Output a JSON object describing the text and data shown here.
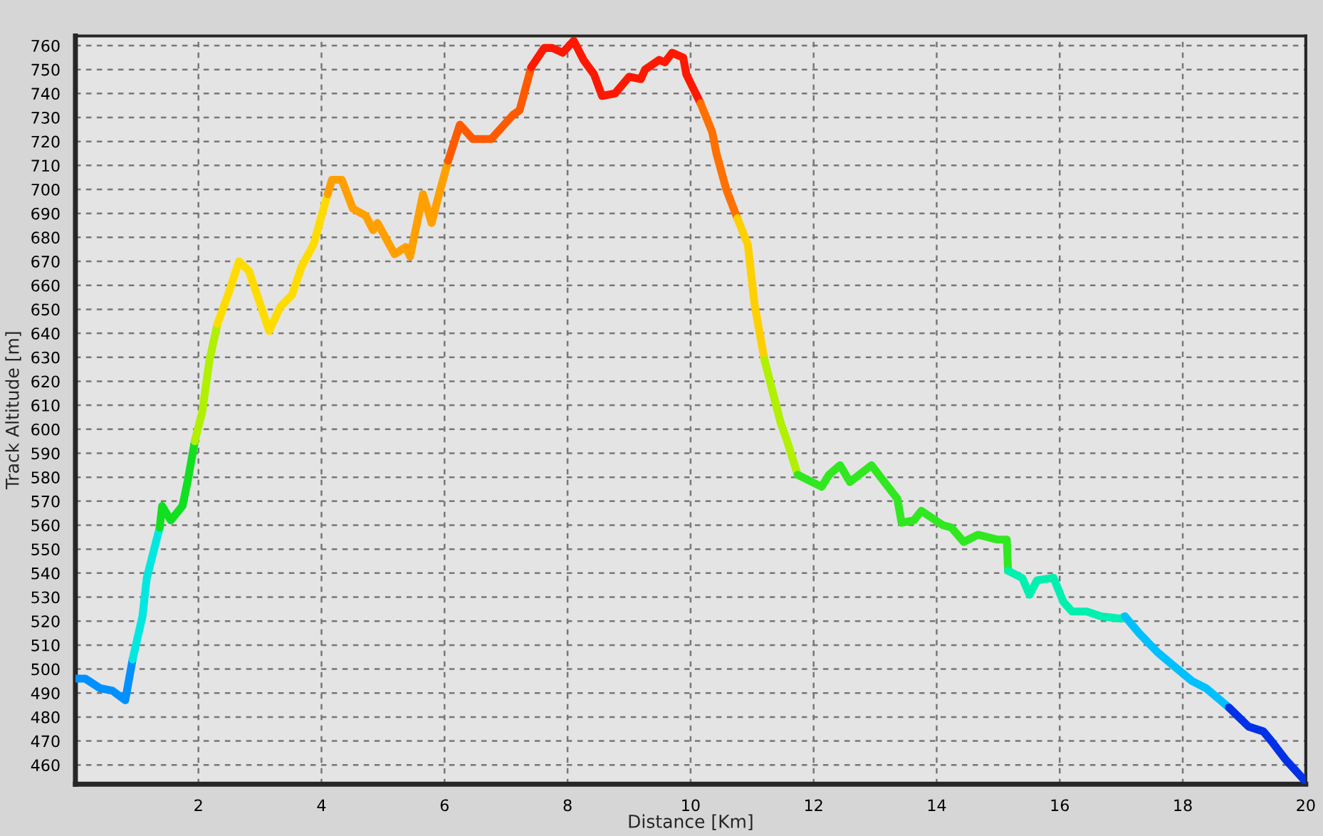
{
  "chart_data": {
    "type": "line",
    "xlabel": "Distance [Km]",
    "ylabel": "Track Altitude [m]",
    "xlim": [
      0,
      20
    ],
    "ylim": [
      452,
      764
    ],
    "xticks": [
      {
        "value": 0,
        "label": null
      },
      2,
      4,
      6,
      8,
      10,
      12,
      14,
      16,
      18,
      20
    ],
    "yticks": [
      460,
      470,
      480,
      490,
      500,
      510,
      520,
      530,
      540,
      550,
      560,
      570,
      580,
      590,
      600,
      610,
      620,
      630,
      640,
      650,
      660,
      670,
      680,
      690,
      700,
      710,
      720,
      730,
      740,
      750,
      760
    ],
    "grid": true,
    "line_style": "solid",
    "marker": "none",
    "series": [
      {
        "color": "#0090ff",
        "x": [
          0,
          0.16,
          0.4,
          0.6,
          0.81,
          0.93
        ],
        "values": [
          496,
          496,
          492,
          491,
          487,
          504
        ]
      },
      {
        "color": "#00e8e0",
        "x": [
          0.93,
          1.09,
          1.16,
          1.37
        ],
        "values": [
          504,
          522,
          538,
          559
        ]
      },
      {
        "color": "#10e020",
        "x": [
          1.37,
          1.41,
          1.55,
          1.74,
          1.83,
          1.94
        ],
        "values": [
          559,
          568,
          562,
          568,
          579,
          595
        ]
      },
      {
        "color": "#b0f000",
        "x": [
          1.94,
          2.06,
          2.18,
          2.31
        ],
        "values": [
          595,
          607,
          629,
          644
        ]
      },
      {
        "color": "#ffdc00",
        "x": [
          2.31,
          2.48,
          2.66,
          2.82,
          2.98,
          3.15,
          3.33,
          3.52,
          3.68,
          3.87,
          4.1
        ],
        "values": [
          644,
          656,
          670,
          666,
          654,
          641,
          651,
          656,
          668,
          677,
          698
        ]
      },
      {
        "color": "#ffa000",
        "x": [
          4.1,
          4.17,
          4.33,
          4.51,
          4.72,
          4.84,
          4.91,
          5.19,
          5.37,
          5.44,
          5.65,
          5.79,
          5.9,
          6.06
        ],
        "values": [
          698,
          704,
          704,
          692,
          689,
          683,
          686,
          673,
          676,
          672,
          698,
          686,
          697,
          712
        ]
      },
      {
        "color": "#ff5a00",
        "x": [
          6.06,
          6.25,
          6.46,
          6.76,
          7.11,
          7.22,
          7.41
        ],
        "values": [
          712,
          727,
          721,
          721,
          731,
          733,
          751
        ]
      },
      {
        "color": "#ff1800",
        "x": [
          7.41,
          7.62,
          7.75,
          7.92,
          8.1,
          8.26,
          8.43,
          8.56,
          8.77,
          9.0,
          9.19,
          9.26,
          9.49,
          9.58,
          9.7,
          9.88,
          9.93,
          10.16
        ],
        "values": [
          751,
          759,
          759,
          757,
          762,
          754,
          748,
          739,
          740,
          747,
          746,
          750,
          754,
          753,
          757,
          755,
          748,
          736
        ]
      },
      {
        "color": "#ff7000",
        "x": [
          10.16,
          10.35,
          10.42,
          10.58,
          10.76
        ],
        "values": [
          736,
          724,
          715,
          700,
          688
        ]
      },
      {
        "color": "#ffd000",
        "x": [
          10.76,
          10.93,
          11.04,
          11.2
        ],
        "values": [
          688,
          677,
          652,
          629
        ]
      },
      {
        "color": "#b0f000",
        "x": [
          11.2,
          11.46,
          11.57,
          11.74
        ],
        "values": [
          629,
          603,
          595,
          581
        ]
      },
      {
        "color": "#30e820",
        "x": [
          11.74,
          12.13,
          12.25,
          12.43,
          12.59,
          12.94,
          13.36,
          13.43,
          13.63,
          13.75,
          14.1,
          14.24,
          14.44,
          14.67,
          14.98,
          15.14,
          15.16
        ],
        "values": [
          581,
          576,
          581,
          585,
          578,
          585,
          571,
          561,
          562,
          566,
          560,
          559,
          553,
          556,
          554,
          554,
          541
        ]
      },
      {
        "color": "#00f0b0",
        "x": [
          15.16,
          15.39,
          15.51,
          15.63,
          15.9,
          16.06,
          16.2,
          16.44,
          16.67,
          16.99,
          17.06
        ],
        "values": [
          541,
          538,
          531,
          537,
          538,
          528,
          524,
          524,
          522,
          521,
          522
        ]
      },
      {
        "color": "#00c0ff",
        "x": [
          17.06,
          17.29,
          17.59,
          17.82,
          18.15,
          18.38,
          18.61,
          18.75
        ],
        "values": [
          522,
          515,
          507,
          502,
          495,
          492,
          487,
          484
        ]
      },
      {
        "color": "#0030e8",
        "x": [
          18.75,
          19.07,
          19.31,
          19.44,
          19.68,
          20.0
        ],
        "values": [
          484,
          476,
          474,
          470,
          462,
          453
        ]
      }
    ]
  }
}
